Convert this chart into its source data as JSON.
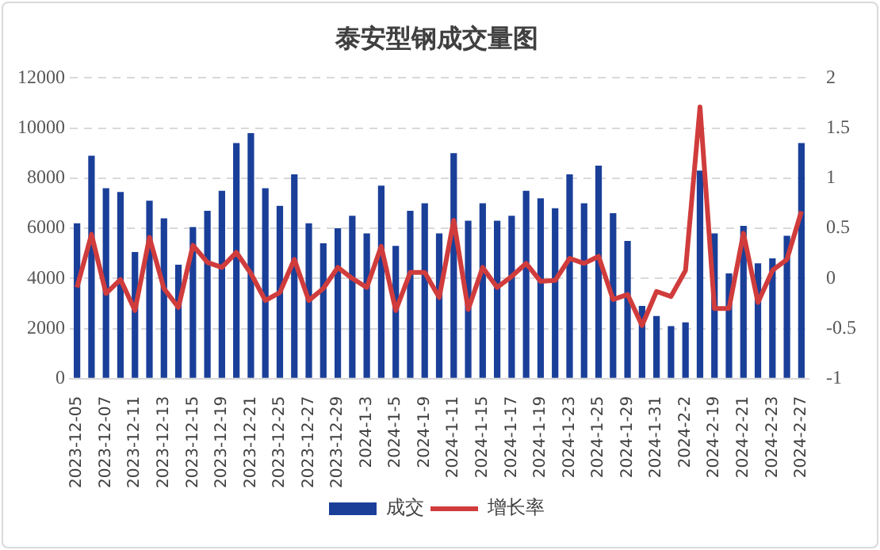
{
  "chart_data": {
    "type": "bar",
    "title": "泰安型钢成交量图",
    "categories": [
      "2023-12-05",
      null,
      "2023-12-07",
      null,
      "2023-12-11",
      null,
      "2023-12-13",
      null,
      "2023-12-15",
      null,
      "2023-12-19",
      null,
      "2023-12-21",
      null,
      "2023-12-25",
      null,
      "2023-12-27",
      null,
      "2023-12-29",
      null,
      "2024-1-3",
      null,
      "2024-1-5",
      null,
      "2024-1-9",
      null,
      "2024-1-11",
      null,
      "2024-1-15",
      null,
      "2024-1-17",
      null,
      "2024-1-19",
      null,
      "2024-1-23",
      null,
      "2024-1-25",
      null,
      "2024-1-29",
      null,
      "2024-1-31",
      null,
      "2024-2-2",
      null,
      "2024-2-19",
      null,
      "2024-2-21",
      null,
      "2024-2-23",
      null,
      "2024-2-27"
    ],
    "series": [
      {
        "name": "成交",
        "color": "#1a3f99",
        "values": [
          6200,
          8900,
          7600,
          7450,
          5050,
          7100,
          6400,
          4550,
          6050,
          6700,
          7500,
          9400,
          9800,
          7600,
          6900,
          8150,
          6200,
          5400,
          6000,
          6500,
          5800,
          7700,
          5300,
          6700,
          7000,
          5800,
          9000,
          6300,
          7000,
          6300,
          6500,
          7500,
          7200,
          6800,
          8150,
          7000,
          8500,
          6600,
          5500,
          2900,
          2500,
          2100,
          2250,
          8300,
          5800,
          4200,
          6100,
          4600,
          4800,
          5700,
          9400
        ]
      },
      {
        "name": "增长率",
        "type": "line",
        "axis": "y2",
        "color": "#d03c3c",
        "values": [
          -0.09,
          0.44,
          -0.15,
          -0.01,
          -0.32,
          0.41,
          -0.1,
          -0.29,
          0.33,
          0.16,
          0.11,
          0.26,
          0.05,
          -0.22,
          -0.14,
          0.19,
          -0.22,
          -0.1,
          0.11,
          0,
          -0.09,
          0.32,
          -0.32,
          0.06,
          0.06,
          -0.19,
          0.58,
          -0.31,
          0.11,
          -0.09,
          0.02,
          0.15,
          -0.03,
          -0.02,
          0.2,
          0.15,
          0.22,
          -0.21,
          -0.16,
          -0.47,
          -0.13,
          -0.18,
          0.08,
          1.71,
          -0.3,
          -0.3,
          0.45,
          -0.24,
          0.08,
          0.19,
          0.67
        ]
      }
    ],
    "ylim": [
      0,
      12000
    ],
    "yticks": [
      0,
      2000,
      4000,
      6000,
      8000,
      10000,
      12000
    ],
    "y2lim": [
      -1,
      2
    ],
    "y2ticks": [
      -1,
      -0.5,
      0,
      0.5,
      1,
      1.5,
      2
    ],
    "grid": "y",
    "legend": "bottom",
    "marker": "none",
    "line_style": "solid"
  }
}
